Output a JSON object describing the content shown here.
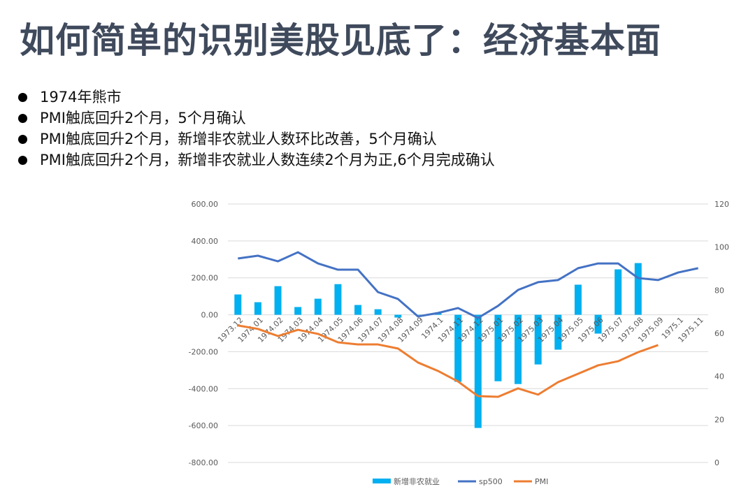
{
  "title": "如何简单的识别美股见底了：经济基本面",
  "bullets": [
    "1974年熊市",
    "PMI触底回升2个月，5个月确认",
    "PMI触底回升2个月，新增非农就业人数环比改善，5个月确认",
    "PMI触底回升2个月，新增非农就业人数连续2个月为正,6个月完成确认"
  ],
  "chart_data": {
    "type": "bar+line",
    "categories": [
      "1973.12",
      "1974.01",
      "1974.02",
      "1974.03",
      "1974.04",
      "1974.05",
      "1974.06",
      "1974.07",
      "1974.08",
      "1974.09",
      "1974.1",
      "1974.11",
      "1974.12",
      "1975.01",
      "1975.02",
      "1975.03",
      "1975.04",
      "1975.05",
      "1975.06",
      "1975.07",
      "1975.08",
      "1975.09",
      "1975.1",
      "1975.11"
    ],
    "series": [
      {
        "name": "新增非农就业",
        "type": "bar",
        "axis": "left",
        "color": "#00b0f0",
        "values": [
          110,
          68,
          155,
          42,
          87,
          166,
          53,
          30,
          -15,
          0,
          10,
          -363,
          -613,
          -360,
          -375,
          -269,
          -189,
          163,
          -102,
          246,
          280,
          null,
          null,
          null
        ]
      },
      {
        "name": "sp500",
        "type": "line",
        "axis": "right",
        "color": "#4472c4",
        "values": [
          94.7,
          96,
          93.4,
          97.6,
          92.4,
          89.5,
          89.5,
          79.1,
          75.9,
          67.8,
          69.4,
          71.7,
          67.1,
          72.7,
          80.1,
          83.7,
          84.7,
          90.2,
          92.4,
          92.4,
          85.6,
          84.7,
          88.2,
          90.2
        ]
      },
      {
        "name": "PMI",
        "type": "line",
        "axis": "right",
        "color": "#ed7d31",
        "values": [
          63.6,
          62,
          58.7,
          61.6,
          59.7,
          55.8,
          54.8,
          54.8,
          52.9,
          46.4,
          42.5,
          37.6,
          30.8,
          30.5,
          34.4,
          31.5,
          37.3,
          41.2,
          45.1,
          47,
          51.2,
          54.5,
          null,
          null
        ]
      }
    ],
    "yleft": {
      "ylim": [
        -800,
        600
      ],
      "ticks": [
        "600.00",
        "400.00",
        "200.00",
        "0.00",
        "-200.00",
        "-400.00",
        "-600.00",
        "-800.00"
      ]
    },
    "yright": {
      "ylim": [
        0,
        120
      ],
      "ticks": [
        "120",
        "100",
        "80",
        "60",
        "40",
        "20",
        "0"
      ]
    },
    "legend": "bottom",
    "grid": true
  }
}
